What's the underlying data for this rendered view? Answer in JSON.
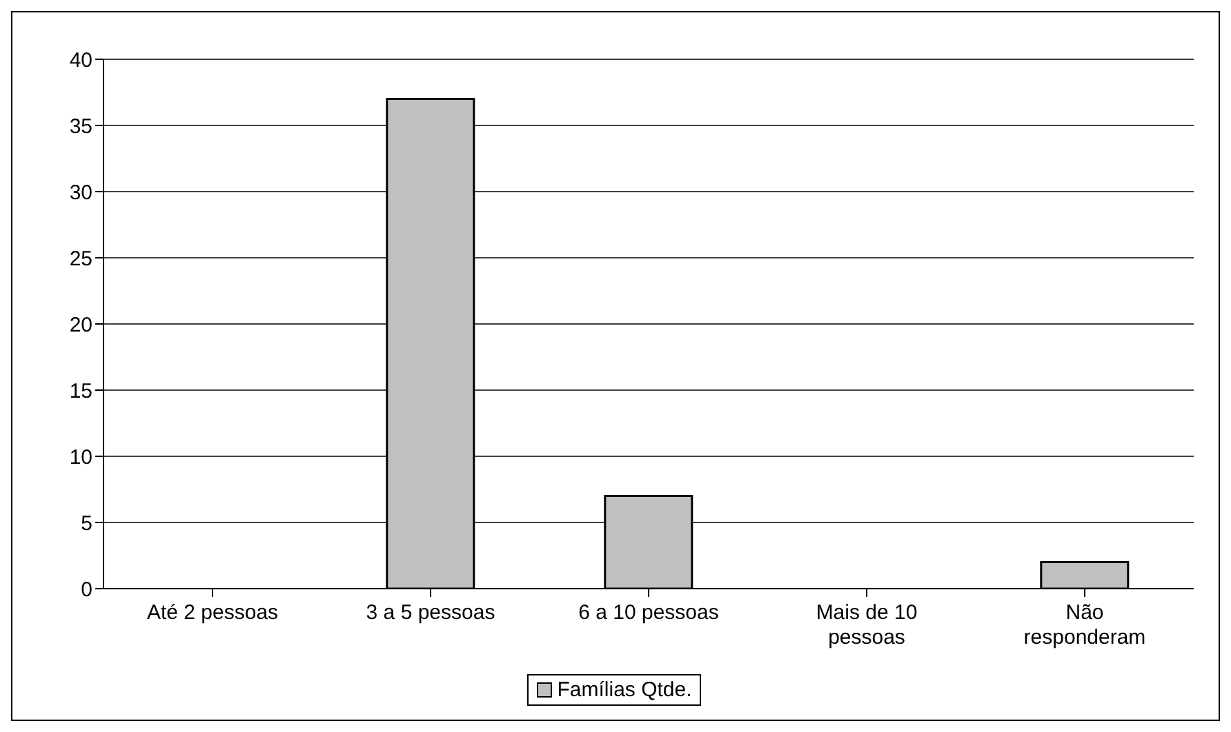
{
  "chart_data": {
    "type": "bar",
    "categories": [
      "Até 2 pessoas",
      "3 a 5 pessoas",
      "6 a 10 pessoas",
      "Mais de 10 pessoas",
      "Não responderam"
    ],
    "series": [
      {
        "name": "Famílias Qtde.",
        "color": "#c0c0c0",
        "values": [
          0,
          37,
          7,
          0,
          2
        ]
      }
    ],
    "ylim": [
      0,
      40
    ],
    "yticks": [
      0,
      5,
      10,
      15,
      20,
      25,
      30,
      35,
      40
    ],
    "grid": "y",
    "legend": "bottom"
  }
}
